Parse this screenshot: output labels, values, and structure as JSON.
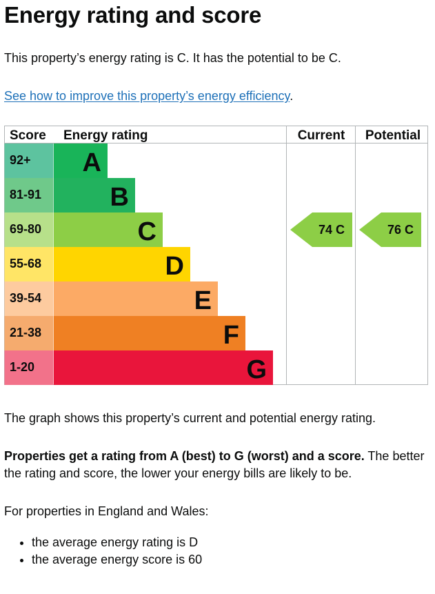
{
  "page_title": "Energy rating and score",
  "intro": {
    "rating_sentence": "This property’s energy rating is C. It has the potential to be C.",
    "improve_link": "See how to improve this property’s energy efficiency",
    "improve_link_suffix": "."
  },
  "chart_data": {
    "type": "table",
    "headers": {
      "score": "Score",
      "energy_rating": "Energy rating",
      "current": "Current",
      "potential": "Potential"
    },
    "bands": [
      {
        "score_range": "92+",
        "letter": "A",
        "color": "#19b459",
        "score_color": "#5dc39f",
        "text_color": "#0b0c0c"
      },
      {
        "score_range": "81-91",
        "letter": "B",
        "color": "#22b25e",
        "score_color": "#6fc98a",
        "text_color": "#0b0c0c"
      },
      {
        "score_range": "69-80",
        "letter": "C",
        "color": "#8dce46",
        "score_color": "#b7e08a",
        "text_color": "#0b0c0c"
      },
      {
        "score_range": "55-68",
        "letter": "D",
        "color": "#ffd500",
        "score_color": "#ffe566",
        "text_color": "#0b0c0c"
      },
      {
        "score_range": "39-54",
        "letter": "E",
        "color": "#fcaa65",
        "score_color": "#fdcb9f",
        "text_color": "#0b0c0c"
      },
      {
        "score_range": "21-38",
        "letter": "F",
        "color": "#ef8023",
        "score_color": "#f5ab6e",
        "text_color": "#0b0c0c"
      },
      {
        "score_range": "1-20",
        "letter": "G",
        "color": "#e9153b",
        "score_color": "#f2728a",
        "text_color": "#0b0c0c"
      }
    ],
    "current": {
      "score": 74,
      "letter": "C",
      "label": "74  C",
      "color": "#8dce46"
    },
    "potential": {
      "score": 76,
      "letter": "C",
      "label": "76  C",
      "color": "#8dce46"
    }
  },
  "explanation": {
    "graph_note": "The graph shows this property’s current and potential energy rating.",
    "rating_bold": "Properties get a rating from A (best) to G (worst) and a score.",
    "rating_rest": " The better the rating and score, the lower your energy bills are likely to be.",
    "region_intro": "For properties in England and Wales:",
    "averages": [
      "the average energy rating is D",
      "the average energy score is 60"
    ]
  }
}
